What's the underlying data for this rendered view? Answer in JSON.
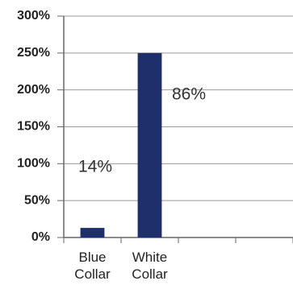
{
  "chart_data": {
    "type": "bar",
    "categories": [
      "Blue Collar",
      "White Collar",
      null,
      null
    ],
    "values": [
      13,
      250,
      null,
      null
    ],
    "color": "#1f2f6b",
    "ylim": [
      0,
      300
    ],
    "yticks": [
      {
        "value": 0,
        "label": "0%"
      },
      {
        "value": 50,
        "label": "50%"
      },
      {
        "value": 100,
        "label": "100%"
      },
      {
        "value": 150,
        "label": "150%"
      },
      {
        "value": 200,
        "label": "200%"
      },
      {
        "value": 250,
        "label": "250%"
      },
      {
        "value": 300,
        "label": "300%"
      }
    ],
    "grid": true,
    "annotations": [
      "14%",
      "86%"
    ]
  }
}
